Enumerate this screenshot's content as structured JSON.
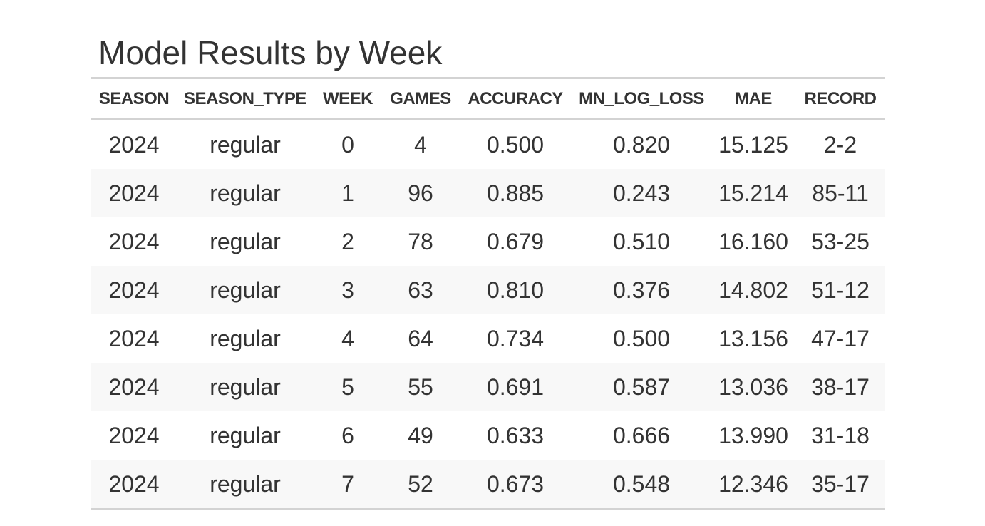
{
  "title": "Model Results by Week",
  "columns": [
    "SEASON",
    "SEASON_TYPE",
    "WEEK",
    "GAMES",
    "ACCURACY",
    "MN_LOG_LOSS",
    "MAE",
    "RECORD"
  ],
  "rows": [
    [
      "2024",
      "regular",
      "0",
      "4",
      "0.500",
      "0.820",
      "15.125",
      "2-2"
    ],
    [
      "2024",
      "regular",
      "1",
      "96",
      "0.885",
      "0.243",
      "15.214",
      "85-11"
    ],
    [
      "2024",
      "regular",
      "2",
      "78",
      "0.679",
      "0.510",
      "16.160",
      "53-25"
    ],
    [
      "2024",
      "regular",
      "3",
      "63",
      "0.810",
      "0.376",
      "14.802",
      "51-12"
    ],
    [
      "2024",
      "regular",
      "4",
      "64",
      "0.734",
      "0.500",
      "13.156",
      "47-17"
    ],
    [
      "2024",
      "regular",
      "5",
      "55",
      "0.691",
      "0.587",
      "13.036",
      "38-17"
    ],
    [
      "2024",
      "regular",
      "6",
      "49",
      "0.633",
      "0.666",
      "13.990",
      "31-18"
    ],
    [
      "2024",
      "regular",
      "7",
      "52",
      "0.673",
      "0.548",
      "12.346",
      "35-17"
    ]
  ],
  "colors": {
    "text": "#333333",
    "rule": "#d3d3d3",
    "stripe": "#f8f8f8"
  }
}
